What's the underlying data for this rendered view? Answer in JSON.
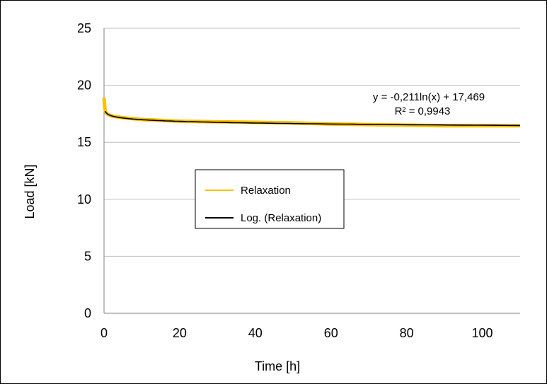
{
  "chart_data": {
    "type": "line",
    "xlabel": "Time [h]",
    "ylabel": "Load [kN]",
    "xlim": [
      0,
      110
    ],
    "ylim": [
      0,
      25
    ],
    "xticks": [
      0,
      20,
      40,
      60,
      80,
      100
    ],
    "yticks": [
      0,
      5,
      10,
      15,
      20,
      25
    ],
    "grid": "horizontal",
    "legend": {
      "placement": "center-left",
      "entries": [
        "Relaxation",
        "Log. (Relaxation)"
      ]
    },
    "series": [
      {
        "name": "Relaxation",
        "color": "#FFC000",
        "x": [
          0,
          0.25,
          0.5,
          1,
          2,
          5,
          10,
          20,
          30,
          40,
          50,
          60,
          70,
          80,
          90,
          100,
          110
        ],
        "y": [
          18.9,
          17.9,
          17.6,
          17.45,
          17.3,
          17.15,
          17.0,
          16.85,
          16.8,
          16.75,
          16.7,
          16.6,
          16.55,
          16.5,
          16.45,
          16.45,
          16.45
        ]
      },
      {
        "name": "Log. (Relaxation)",
        "color": "#000000",
        "trendline": "logarithmic",
        "equation": {
          "a": -0.211,
          "b": 17.469
        },
        "x_range": [
          0.3,
          110
        ]
      }
    ],
    "annotations": {
      "equation": "y = -0,211ln(x) + 17,469",
      "r_squared": "R² = 0,9943"
    }
  }
}
